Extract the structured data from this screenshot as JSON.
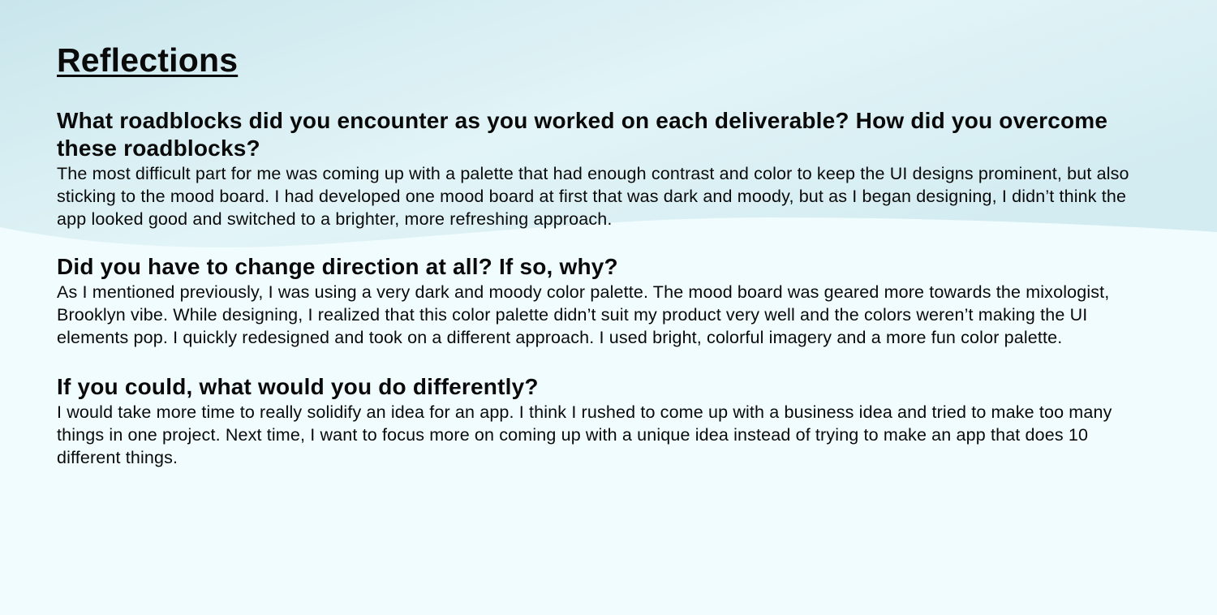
{
  "colors": {
    "background": "#f0fcfd",
    "wave_top": "#c9e6ec",
    "wave_bottom": "#e4f5f8",
    "text": "#0a0a0a"
  },
  "title": "Reflections",
  "sections": [
    {
      "heading": "What roadblocks did you encounter as you worked on each deliverable? How did you overcome these roadblocks?",
      "body": "The most difficult part for me was coming up with a palette that had enough contrast and color to keep the UI designs prominent, but also sticking to the mood board. I had developed one mood board at first that was dark and moody, but as I began designing, I didn’t think the app looked good and switched to a brighter, more refreshing approach."
    },
    {
      "heading": "Did you have to change direction at all? If so, why?",
      "body": "As I mentioned previously, I was using a very dark and moody color palette. The mood board was geared more towards the mixologist, Brooklyn vibe. While designing, I realized that this color palette didn’t suit my product very well and the colors weren’t making the UI elements pop. I quickly redesigned and took on a different approach. I used bright, colorful imagery and a more fun color palette."
    },
    {
      "heading": "If you could, what would you do differently?",
      "body": "I would take more time to really solidify an idea for an app. I think I rushed to come up with a business idea and tried to make too many things in one project. Next time, I want to focus more on coming up with a unique idea instead of trying to make an app that does 10 different things."
    }
  ]
}
